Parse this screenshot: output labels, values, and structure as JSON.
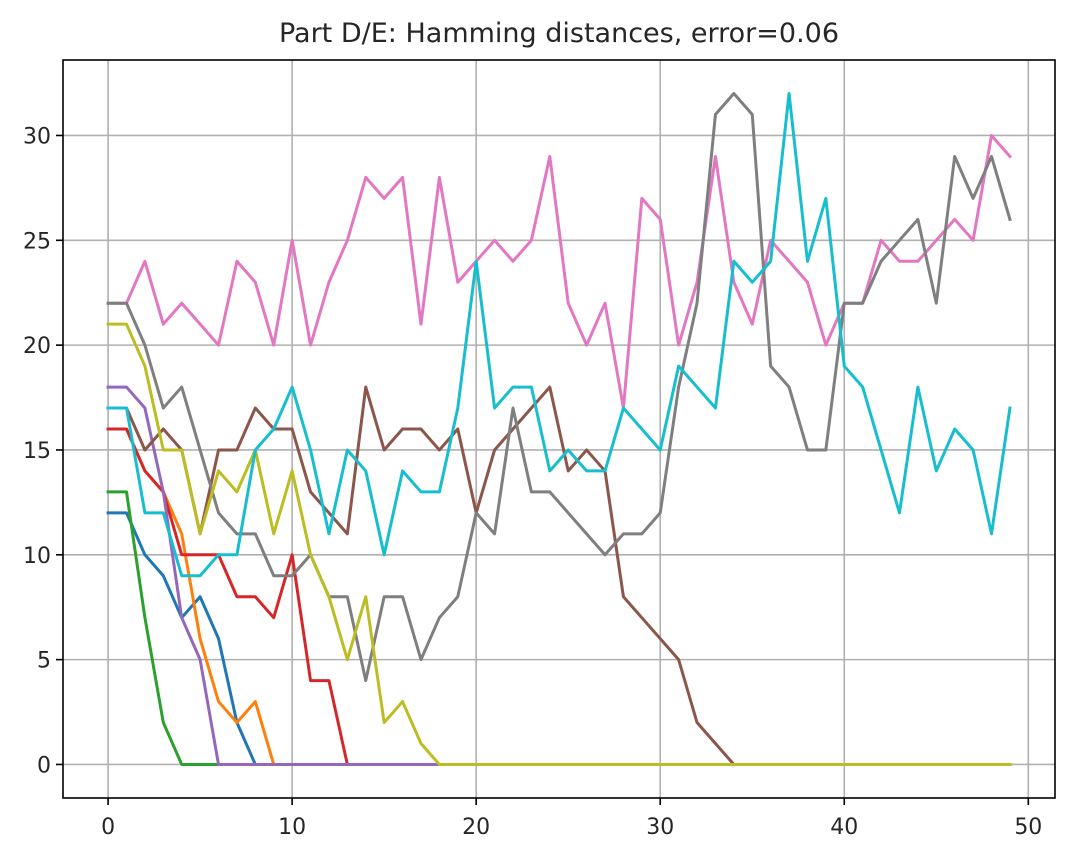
{
  "chart_data": {
    "type": "line",
    "title": "Part D/E: Hamming distances, error=0.06",
    "xlabel": "",
    "ylabel": "",
    "xlim": [
      -2.45,
      51.45
    ],
    "ylim": [
      -1.6,
      33.6
    ],
    "xticks": [
      0,
      10,
      20,
      30,
      40,
      50
    ],
    "yticks": [
      0,
      5,
      10,
      15,
      20,
      25,
      30
    ],
    "grid": true,
    "legend": "none",
    "series": [
      {
        "color": "#1f77b4",
        "values": [
          12,
          12,
          10,
          9,
          7,
          8,
          6,
          2,
          0,
          0,
          0,
          0,
          0,
          0,
          0,
          0,
          0,
          0,
          0,
          0,
          0,
          0,
          0,
          0,
          0,
          0,
          0,
          0,
          0,
          0,
          0,
          0,
          0,
          0,
          0,
          0,
          0,
          0,
          0,
          0,
          0,
          0,
          0,
          0,
          0,
          0,
          0,
          0,
          0,
          0
        ]
      },
      {
        "color": "#ff7f0e",
        "values": [
          16,
          16,
          14,
          13,
          11,
          6,
          3,
          2,
          3,
          0,
          0,
          0,
          0,
          0,
          0,
          0,
          0,
          0,
          0,
          0,
          0,
          0,
          0,
          0,
          0,
          0,
          0,
          0,
          0,
          0,
          0,
          0,
          0,
          0,
          0,
          0,
          0,
          0,
          0,
          0,
          0,
          0,
          0,
          0,
          0,
          0,
          0,
          0,
          0,
          0
        ]
      },
      {
        "color": "#2ca02c",
        "values": [
          13,
          13,
          7,
          2,
          0,
          0,
          0,
          0,
          0,
          0,
          0,
          0,
          0,
          0,
          0,
          0,
          0,
          0,
          0,
          0,
          0,
          0,
          0,
          0,
          0,
          0,
          0,
          0,
          0,
          0,
          0,
          0,
          0,
          0,
          0,
          0,
          0,
          0,
          0,
          0,
          0,
          0,
          0,
          0,
          0,
          0,
          0,
          0,
          0,
          0
        ]
      },
      {
        "color": "#d62728",
        "values": [
          16,
          16,
          14,
          13,
          10,
          10,
          10,
          8,
          8,
          7,
          10,
          4,
          4,
          0,
          0,
          0,
          0,
          0,
          0,
          0,
          0,
          0,
          0,
          0,
          0,
          0,
          0,
          0,
          0,
          0,
          0,
          0,
          0,
          0,
          0,
          0,
          0,
          0,
          0,
          0,
          0,
          0,
          0,
          0,
          0,
          0,
          0,
          0,
          0,
          0
        ]
      },
      {
        "color": "#9467bd",
        "values": [
          18,
          18,
          17,
          13,
          7,
          5,
          0,
          0,
          0,
          0,
          0,
          0,
          0,
          0,
          0,
          0,
          0,
          0,
          0,
          0,
          0,
          0,
          0,
          0,
          0,
          0,
          0,
          0,
          0,
          0,
          0,
          0,
          0,
          0,
          0,
          0,
          0,
          0,
          0,
          0,
          0,
          0,
          0,
          0,
          0,
          0,
          0,
          0,
          0,
          0
        ]
      },
      {
        "color": "#8c564b",
        "values": [
          17,
          17,
          15,
          16,
          15,
          11,
          15,
          15,
          17,
          16,
          16,
          13,
          12,
          11,
          18,
          15,
          16,
          16,
          15,
          16,
          12,
          15,
          16,
          17,
          18,
          14,
          15,
          14,
          8,
          7,
          6,
          5,
          2,
          1,
          0,
          0,
          0,
          0,
          0,
          0,
          0,
          0,
          0,
          0,
          0,
          0,
          0,
          0,
          0,
          0
        ]
      },
      {
        "color": "#e377c2",
        "values": [
          22,
          22,
          24,
          21,
          22,
          21,
          20,
          24,
          23,
          20,
          25,
          20,
          23,
          25,
          28,
          27,
          28,
          21,
          28,
          23,
          24,
          25,
          24,
          25,
          29,
          22,
          20,
          22,
          17,
          27,
          26,
          20,
          23,
          29,
          23,
          21,
          25,
          24,
          23,
          20,
          22,
          22,
          25,
          24,
          24,
          25,
          26,
          25,
          30,
          29
        ]
      },
      {
        "color": "#7f7f7f",
        "values": [
          22,
          22,
          20,
          17,
          18,
          15,
          12,
          11,
          11,
          9,
          9,
          10,
          8,
          8,
          4,
          8,
          8,
          5,
          7,
          8,
          12,
          11,
          17,
          13,
          13,
          12,
          11,
          10,
          11,
          11,
          12,
          18,
          22,
          31,
          32,
          31,
          19,
          18,
          15,
          15,
          22,
          22,
          24,
          25,
          26,
          22,
          29,
          27,
          29,
          26
        ]
      },
      {
        "color": "#bcbd22",
        "values": [
          21,
          21,
          19,
          15,
          15,
          11,
          14,
          13,
          15,
          11,
          14,
          10,
          8,
          5,
          8,
          2,
          3,
          1,
          0,
          0,
          0,
          0,
          0,
          0,
          0,
          0,
          0,
          0,
          0,
          0,
          0,
          0,
          0,
          0,
          0,
          0,
          0,
          0,
          0,
          0,
          0,
          0,
          0,
          0,
          0,
          0,
          0,
          0,
          0,
          0
        ]
      },
      {
        "color": "#17becf",
        "values": [
          17,
          17,
          12,
          12,
          9,
          9,
          10,
          10,
          15,
          16,
          18,
          15,
          11,
          15,
          14,
          10,
          14,
          13,
          13,
          17,
          24,
          17,
          18,
          18,
          14,
          15,
          14,
          14,
          17,
          16,
          15,
          19,
          18,
          17,
          24,
          23,
          24,
          32,
          24,
          27,
          19,
          18,
          15,
          12,
          18,
          14,
          16,
          15,
          11,
          17
        ]
      }
    ]
  }
}
